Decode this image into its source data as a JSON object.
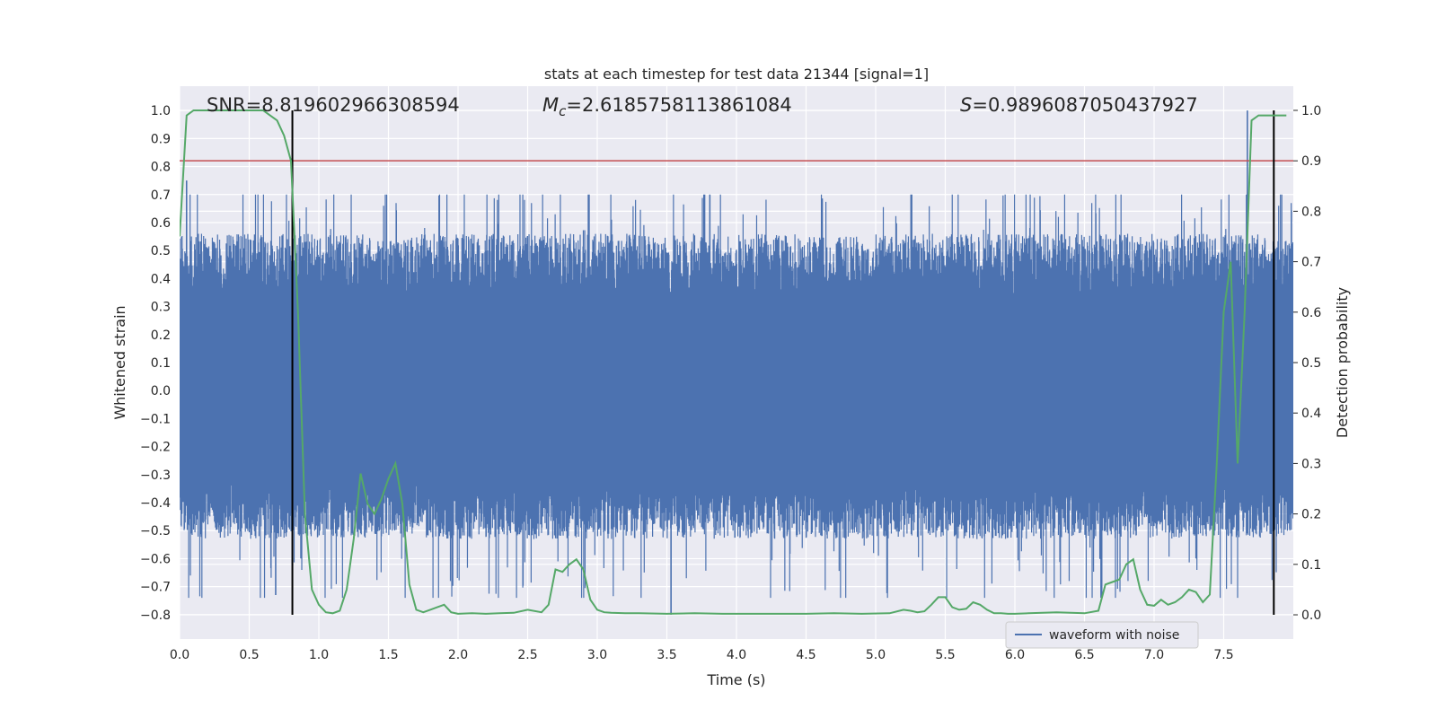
{
  "chart_data": {
    "type": "line",
    "title": "stats at each timestep for test data 21344 [signal=1]",
    "xlabel": "Time (s)",
    "ylabel": "Whitened strain",
    "y2label": "Detection probability",
    "xlim": [
      0.0,
      8.0
    ],
    "ylim": [
      -0.887,
      1.087
    ],
    "y2lim": [
      -0.048,
      1.048
    ],
    "x_ticks": [
      "0.0",
      "0.5",
      "1.0",
      "1.5",
      "2.0",
      "2.5",
      "3.0",
      "3.5",
      "4.0",
      "4.5",
      "5.0",
      "5.5",
      "6.0",
      "6.5",
      "7.0",
      "7.5"
    ],
    "x_tick_values": [
      0.0,
      0.5,
      1.0,
      1.5,
      2.0,
      2.5,
      3.0,
      3.5,
      4.0,
      4.5,
      5.0,
      5.5,
      6.0,
      6.5,
      7.0,
      7.5
    ],
    "y_ticks": [
      "−0.8",
      "−0.7",
      "−0.6",
      "−0.5",
      "−0.4",
      "−0.3",
      "−0.2",
      "−0.1",
      "0.0",
      "0.1",
      "0.2",
      "0.3",
      "0.4",
      "0.5",
      "0.6",
      "0.7",
      "0.8",
      "0.9",
      "1.0"
    ],
    "y_tick_values": [
      -0.8,
      -0.7,
      -0.6,
      -0.5,
      -0.4,
      -0.3,
      -0.2,
      -0.1,
      0.0,
      0.1,
      0.2,
      0.3,
      0.4,
      0.5,
      0.6,
      0.7,
      0.8,
      0.9,
      1.0
    ],
    "y2_ticks": [
      "0.0",
      "0.1",
      "0.2",
      "0.3",
      "0.4",
      "0.5",
      "0.6",
      "0.7",
      "0.8",
      "0.9",
      "1.0"
    ],
    "y2_tick_values": [
      0.0,
      0.1,
      0.2,
      0.3,
      0.4,
      0.5,
      0.6,
      0.7,
      0.8,
      0.9,
      1.0
    ],
    "grid": true,
    "legend": {
      "placement": "lower-right",
      "entries": [
        "waveform with noise"
      ]
    },
    "annotations": {
      "snr": "SNR=8.819602966308594",
      "mc_prefix": "M",
      "mc_sub": "c",
      "mc_value": "=2.6185758113861084",
      "s_prefix": "S",
      "s_value": "=0.9896087050437927"
    },
    "waveform": {
      "name": "waveform with noise",
      "color": "#4c72b0",
      "duration_s": 8.0,
      "min": -0.8,
      "max": 1.0,
      "core_band": [
        -0.27,
        0.28
      ]
    },
    "detection_probability": {
      "color": "#55a868",
      "x": [
        0.0,
        0.05,
        0.1,
        0.2,
        0.3,
        0.4,
        0.5,
        0.6,
        0.7,
        0.75,
        0.8,
        0.85,
        0.9,
        0.95,
        1.0,
        1.05,
        1.1,
        1.15,
        1.2,
        1.25,
        1.3,
        1.35,
        1.4,
        1.45,
        1.5,
        1.55,
        1.6,
        1.65,
        1.7,
        1.75,
        1.8,
        1.85,
        1.9,
        1.95,
        2.0,
        2.1,
        2.2,
        2.3,
        2.4,
        2.5,
        2.6,
        2.65,
        2.7,
        2.75,
        2.8,
        2.85,
        2.9,
        2.95,
        3.0,
        3.05,
        3.1,
        3.2,
        3.3,
        3.5,
        3.7,
        3.9,
        4.1,
        4.3,
        4.5,
        4.7,
        4.9,
        5.1,
        5.2,
        5.25,
        5.3,
        5.35,
        5.4,
        5.45,
        5.5,
        5.55,
        5.6,
        5.65,
        5.7,
        5.75,
        5.8,
        5.85,
        5.9,
        5.95,
        6.0,
        6.1,
        6.3,
        6.5,
        6.6,
        6.65,
        6.7,
        6.75,
        6.8,
        6.85,
        6.9,
        6.95,
        7.0,
        7.05,
        7.1,
        7.15,
        7.2,
        7.25,
        7.3,
        7.35,
        7.4,
        7.45,
        7.5,
        7.55,
        7.6,
        7.65,
        7.7,
        7.75,
        7.8,
        7.85,
        7.9,
        7.95
      ],
      "y": [
        0.75,
        0.99,
        1.0,
        1.0,
        1.0,
        1.0,
        1.0,
        1.0,
        0.98,
        0.95,
        0.9,
        0.6,
        0.2,
        0.05,
        0.02,
        0.005,
        0.003,
        0.008,
        0.05,
        0.15,
        0.28,
        0.22,
        0.2,
        0.23,
        0.27,
        0.3,
        0.22,
        0.06,
        0.01,
        0.005,
        0.01,
        0.015,
        0.02,
        0.005,
        0.002,
        0.003,
        0.002,
        0.003,
        0.004,
        0.01,
        0.005,
        0.02,
        0.09,
        0.085,
        0.1,
        0.11,
        0.09,
        0.03,
        0.01,
        0.005,
        0.004,
        0.003,
        0.003,
        0.002,
        0.003,
        0.002,
        0.002,
        0.002,
        0.002,
        0.003,
        0.002,
        0.003,
        0.01,
        0.008,
        0.005,
        0.007,
        0.02,
        0.035,
        0.035,
        0.015,
        0.01,
        0.012,
        0.025,
        0.02,
        0.01,
        0.003,
        0.003,
        0.002,
        0.002,
        0.003,
        0.005,
        0.003,
        0.008,
        0.06,
        0.065,
        0.07,
        0.1,
        0.11,
        0.05,
        0.02,
        0.018,
        0.03,
        0.02,
        0.025,
        0.035,
        0.05,
        0.045,
        0.025,
        0.04,
        0.3,
        0.6,
        0.7,
        0.3,
        0.6,
        0.98,
        0.99,
        0.99,
        0.99,
        0.99,
        0.99
      ]
    },
    "threshold": {
      "prob": 0.9,
      "color": "#c44e52"
    },
    "markers": {
      "color": "#000000",
      "x": [
        0.81,
        7.86
      ],
      "prob_range": [
        0.0,
        1.0
      ]
    }
  }
}
